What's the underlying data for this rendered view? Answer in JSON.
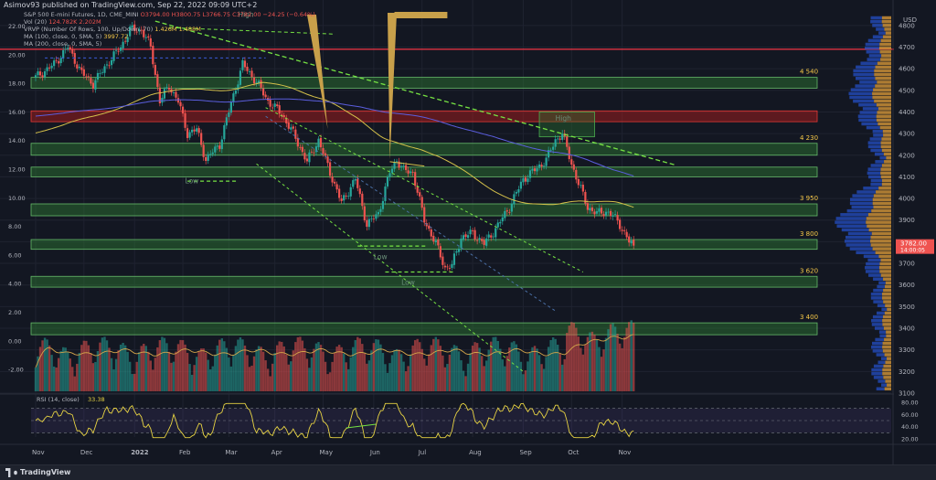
{
  "header": "Asimov93 published on TradingView.com, Sep 22, 2022 09:09 UTC+2",
  "footer": {
    "brand": "TradingView"
  },
  "legend": [
    {
      "name": "S&P 500 E-mini Futures, 1D, CME_MINI",
      "values": "O3794.00 H3800.75 L3766.75 C3782.00 −24.25 (−0.64%)",
      "color": "#ef5350"
    },
    {
      "name": "Vol (20)",
      "values": "124.782K 2.202M",
      "color": "#ef5350"
    },
    {
      "name": "VRVP (Number Of Rows, 100, Up/Down, 70)",
      "values": "1.426M 1.488M",
      "color": "#f7c948"
    },
    {
      "name": "MA (100, close, 0, SMA, 5)",
      "values": "3997.72",
      "color": "#f7c948"
    },
    {
      "name": "MA (200, close, 0, SMA, 5)",
      "values": "",
      "color": "#7e57c2"
    }
  ],
  "colors": {
    "bg": "#131722",
    "up": "#26a69a",
    "down": "#ef5350",
    "zone_green": "#2e7d32",
    "zone_red": "#b71c1c",
    "ma100": "#d4c04a",
    "ma200": "#5b5ede",
    "trend": "#76e343",
    "resist": "#f23645",
    "rsi": "#e8d443"
  },
  "chart_data": {
    "type": "candlestick",
    "symbol": "S&P 500 E-mini Futures, 1D, CME_MINI",
    "x_ticks": [
      "Nov",
      "Dec",
      "2022",
      "Feb",
      "Mar",
      "Apr",
      "May",
      "Jun",
      "Jul",
      "Aug",
      "Sep",
      "Oct",
      "Nov"
    ],
    "price_ticks": [
      4800,
      4700,
      4600,
      4500,
      4400,
      4300,
      4200,
      4100,
      4000,
      3900,
      3800,
      3700,
      3600,
      3500,
      3400,
      3300,
      3200,
      3100
    ],
    "ylim": [
      3100,
      4850
    ],
    "left_ticks": [
      "22.00",
      "20.00",
      "18.00",
      "16.00",
      "14.00",
      "12.00",
      "10.00",
      "8.00",
      "6.00",
      "4.00",
      "2.00",
      "0.00",
      "-2.00"
    ],
    "rsi_ticks": [
      "80.00",
      "60.00",
      "40.00",
      "20.00"
    ],
    "rsi_label": "RSI (14, close)",
    "rsi_value": "33.38",
    "last_price": "3782.00",
    "countdown": "14:00:05",
    "zones": [
      {
        "label": "4 540",
        "low": 4510,
        "high": 4560,
        "color": "green"
      },
      {
        "label": "",
        "low": 4355,
        "high": 4405,
        "color": "red"
      },
      {
        "label": "4 230",
        "low": 4200,
        "high": 4255,
        "color": "green"
      },
      {
        "label": "",
        "low": 4100,
        "high": 4145,
        "color": "green"
      },
      {
        "label": "3 950",
        "low": 3920,
        "high": 3975,
        "color": "green"
      },
      {
        "label": "3 800",
        "low": 3765,
        "high": 3810,
        "color": "green"
      },
      {
        "label": "3 620",
        "low": 3590,
        "high": 3640,
        "color": "green"
      },
      {
        "label": "3 400",
        "low": 3370,
        "high": 3425,
        "color": "green"
      }
    ],
    "resistance_level": 4690,
    "annotations": [
      {
        "text": "High",
        "date_index": 88,
        "price": 4840
      },
      {
        "text": "Low",
        "date_index": 65,
        "price": 4070
      },
      {
        "text": "High",
        "date_index": 226,
        "price": 4360
      },
      {
        "text": "Low",
        "date_index": 147,
        "price": 3720
      },
      {
        "text": "Low",
        "date_index": 159,
        "price": 3600
      }
    ],
    "anchors": [
      [
        0,
        4560
      ],
      [
        8,
        4620
      ],
      [
        14,
        4700
      ],
      [
        20,
        4580
      ],
      [
        25,
        4530
      ],
      [
        31,
        4620
      ],
      [
        37,
        4700
      ],
      [
        41,
        4780
      ],
      [
        46,
        4780
      ],
      [
        50,
        4700
      ],
      [
        54,
        4450
      ],
      [
        58,
        4520
      ],
      [
        62,
        4450
      ],
      [
        66,
        4300
      ],
      [
        70,
        4320
      ],
      [
        74,
        4180
      ],
      [
        80,
        4250
      ],
      [
        85,
        4440
      ],
      [
        90,
        4620
      ],
      [
        96,
        4540
      ],
      [
        101,
        4450
      ],
      [
        107,
        4390
      ],
      [
        112,
        4300
      ],
      [
        118,
        4170
      ],
      [
        123,
        4270
      ],
      [
        128,
        4120
      ],
      [
        133,
        3980
      ],
      [
        139,
        4090
      ],
      [
        144,
        3880
      ],
      [
        149,
        3930
      ],
      [
        154,
        4120
      ],
      [
        157,
        4180
      ],
      [
        160,
        4130
      ],
      [
        164,
        4120
      ],
      [
        169,
        3900
      ],
      [
        174,
        3790
      ],
      [
        178,
        3680
      ],
      [
        181,
        3690
      ],
      [
        185,
        3820
      ],
      [
        190,
        3840
      ],
      [
        195,
        3790
      ],
      [
        200,
        3860
      ],
      [
        206,
        3960
      ],
      [
        212,
        4090
      ],
      [
        218,
        4140
      ],
      [
        222,
        4180
      ],
      [
        226,
        4270
      ],
      [
        229,
        4300
      ],
      [
        233,
        4160
      ],
      [
        236,
        4070
      ],
      [
        240,
        3960
      ],
      [
        244,
        3930
      ],
      [
        248,
        3940
      ],
      [
        251,
        3920
      ],
      [
        254,
        3880
      ],
      [
        258,
        3800
      ],
      [
        260,
        3782
      ]
    ]
  }
}
